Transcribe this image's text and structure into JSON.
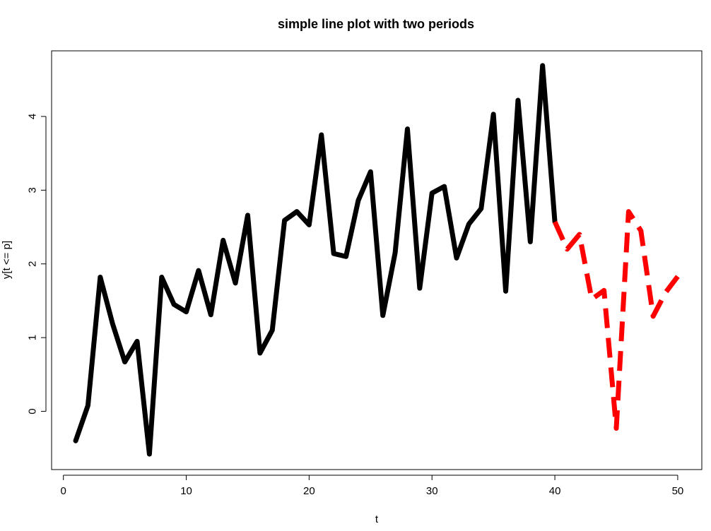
{
  "chart_data": {
    "type": "line",
    "title": "simple line plot with two periods",
    "xlabel": "t",
    "ylabel": "y[t <= p]",
    "xlim": [
      -0.96,
      51.96
    ],
    "ylim": [
      -0.79,
      4.89
    ],
    "xticks": [
      0,
      10,
      20,
      30,
      40,
      50
    ],
    "yticks": [
      0,
      1,
      2,
      3,
      4
    ],
    "grid": false,
    "series": [
      {
        "color": "#000000",
        "style": "solid",
        "x": [
          1,
          2,
          3,
          4,
          5,
          6,
          7,
          8,
          9,
          10,
          11,
          12,
          13,
          14,
          15,
          16,
          17,
          18,
          19,
          20,
          21,
          22,
          23,
          24,
          25,
          26,
          27,
          28,
          29,
          30,
          31,
          32,
          33,
          34,
          35,
          36,
          37,
          38,
          39,
          40
        ],
        "values": [
          -0.4,
          0.08,
          1.82,
          1.19,
          0.67,
          0.95,
          -0.58,
          1.82,
          1.45,
          1.35,
          1.91,
          1.31,
          2.32,
          1.74,
          2.66,
          0.79,
          1.1,
          2.59,
          2.71,
          2.53,
          3.75,
          2.14,
          2.1,
          2.86,
          3.25,
          1.3,
          2.15,
          3.83,
          1.67,
          2.96,
          3.05,
          2.08,
          2.54,
          2.75,
          4.03,
          1.63,
          4.22,
          2.3,
          4.69,
          2.57
        ]
      },
      {
        "color": "#ff0000",
        "style": "dashed",
        "x": [
          40,
          41,
          42,
          43,
          44,
          45,
          46,
          47,
          48,
          49,
          50
        ],
        "values": [
          2.57,
          2.2,
          2.4,
          1.52,
          1.64,
          -0.23,
          2.71,
          2.45,
          1.29,
          1.61,
          1.83
        ]
      }
    ]
  }
}
